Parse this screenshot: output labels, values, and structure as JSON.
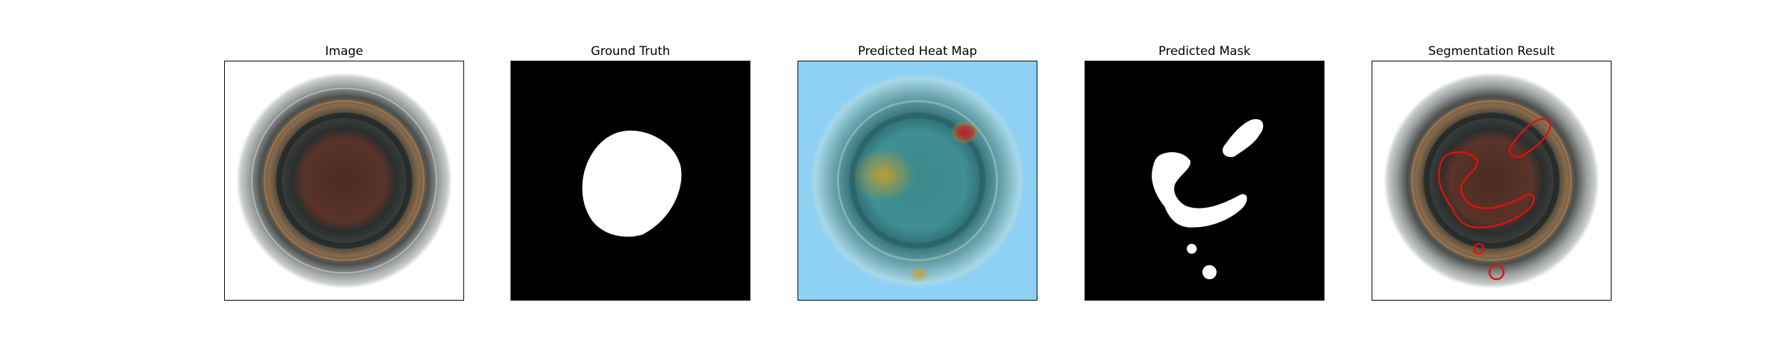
{
  "figure": {
    "panels": [
      {
        "title": "Image"
      },
      {
        "title": "Ground Truth"
      },
      {
        "title": "Predicted Heat Map"
      },
      {
        "title": "Predicted Mask"
      },
      {
        "title": "Segmentation Result"
      }
    ]
  },
  "colors": {
    "background": "#ffffff",
    "mask_bg": "#000000",
    "mask_fg": "#ffffff",
    "contour": "#e01010",
    "heat_cool": "#8fd0f5",
    "heat_warm": "#d9a21e",
    "heat_hot": "#c0182a"
  }
}
